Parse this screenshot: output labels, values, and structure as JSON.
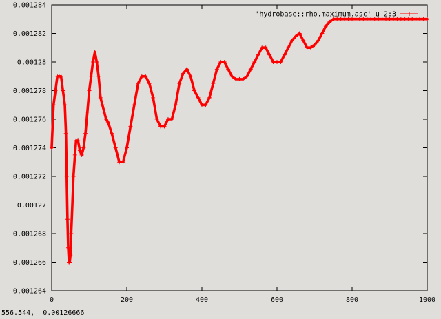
{
  "status_bar": {
    "cursor_readout": "556.544,  0.00126666"
  },
  "chart_data": {
    "type": "line",
    "title": "",
    "xlabel": "",
    "ylabel": "",
    "xlim": [
      0,
      1000
    ],
    "ylim": [
      0.001264,
      0.001284
    ],
    "x_ticks": [
      0,
      200,
      400,
      600,
      800,
      1000
    ],
    "x_tick_labels": [
      "0",
      "200",
      "400",
      "600",
      "800",
      "1000"
    ],
    "y_ticks": [
      0.001264,
      0.001266,
      0.001268,
      0.00127,
      0.001272,
      0.001274,
      0.001276,
      0.001278,
      0.00128,
      0.001282,
      0.001284
    ],
    "y_tick_labels": [
      "0.001264",
      "0.001266",
      "0.001268",
      "0.00127",
      "0.001272",
      "0.001274",
      "0.001276",
      "0.001278",
      "0.00128",
      "0.001282",
      "0.001284"
    ],
    "grid": false,
    "legend_position": "top-right",
    "series": [
      {
        "name": "'hydrobase::rho.maximum.asc' u 2:3",
        "color": "#ff0000",
        "marker": "plus",
        "x": [
          0,
          5,
          10,
          15,
          20,
          25,
          30,
          35,
          38,
          40,
          42,
          44,
          46,
          48,
          50,
          52,
          55,
          58,
          62,
          65,
          70,
          75,
          80,
          85,
          90,
          95,
          100,
          105,
          110,
          115,
          120,
          125,
          130,
          135,
          140,
          145,
          150,
          160,
          170,
          180,
          190,
          200,
          210,
          220,
          230,
          240,
          250,
          260,
          270,
          280,
          290,
          300,
          310,
          320,
          330,
          340,
          350,
          360,
          370,
          380,
          390,
          400,
          410,
          420,
          430,
          440,
          450,
          460,
          470,
          480,
          490,
          500,
          510,
          520,
          530,
          540,
          550,
          560,
          570,
          580,
          590,
          600,
          610,
          620,
          630,
          640,
          650,
          660,
          670,
          680,
          690,
          700,
          710,
          720,
          730,
          740,
          750,
          760,
          770,
          780,
          790,
          800,
          810,
          820,
          830,
          840,
          850,
          860,
          870,
          880,
          890,
          900,
          910,
          920,
          930,
          940,
          950,
          960,
          970,
          980,
          990,
          1000
        ],
        "y": [
          0.001274,
          0.001277,
          0.001278,
          0.001279,
          0.001279,
          0.001279,
          0.001278,
          0.001277,
          0.001275,
          0.001272,
          0.001269,
          0.001267,
          0.001266,
          0.001266,
          0.0012665,
          0.001268,
          0.00127,
          0.001272,
          0.0012735,
          0.0012745,
          0.0012745,
          0.0012738,
          0.0012735,
          0.001274,
          0.001275,
          0.0012765,
          0.001278,
          0.001279,
          0.00128,
          0.0012807,
          0.00128,
          0.001279,
          0.0012775,
          0.001277,
          0.0012765,
          0.001276,
          0.0012758,
          0.001275,
          0.001274,
          0.001273,
          0.001273,
          0.001274,
          0.0012755,
          0.001277,
          0.0012785,
          0.001279,
          0.001279,
          0.0012785,
          0.0012775,
          0.001276,
          0.0012755,
          0.0012755,
          0.001276,
          0.001276,
          0.001277,
          0.0012785,
          0.0012792,
          0.0012795,
          0.001279,
          0.001278,
          0.0012775,
          0.001277,
          0.001277,
          0.0012775,
          0.0012785,
          0.0012795,
          0.00128,
          0.00128,
          0.0012795,
          0.001279,
          0.0012788,
          0.0012788,
          0.0012788,
          0.001279,
          0.0012795,
          0.00128,
          0.0012805,
          0.001281,
          0.001281,
          0.0012805,
          0.00128,
          0.00128,
          0.00128,
          0.0012805,
          0.001281,
          0.0012815,
          0.0012818,
          0.001282,
          0.0012815,
          0.001281,
          0.001281,
          0.0012812,
          0.0012815,
          0.001282,
          0.0012825,
          0.0012828,
          0.001283,
          0.001283,
          0.001283,
          0.001283,
          0.001283,
          0.001283,
          0.001283,
          0.001283,
          0.001283,
          0.001283,
          0.001283,
          0.001283,
          0.001283,
          0.001283,
          0.001283,
          0.001283,
          0.001283,
          0.001283,
          0.001283,
          0.001283,
          0.001283,
          0.001283,
          0.001283,
          0.001283,
          0.001283,
          0.001283
        ]
      }
    ]
  }
}
